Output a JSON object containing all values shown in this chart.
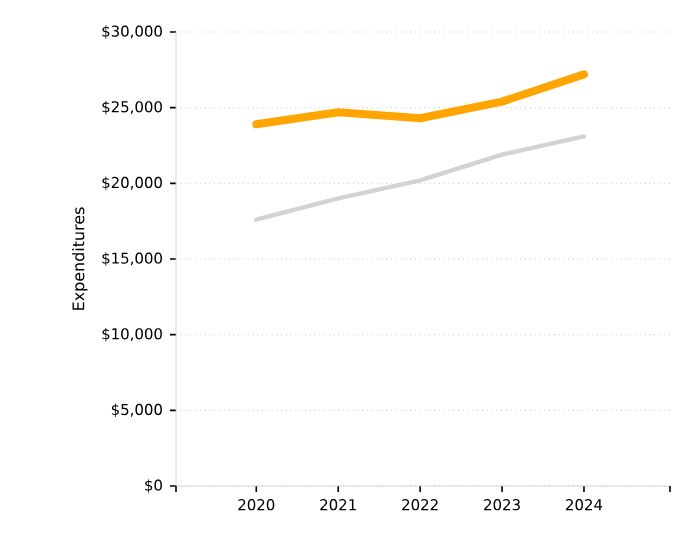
{
  "chart_data": {
    "type": "line",
    "ylabel": "Expenditures",
    "categories": [
      "2020",
      "2021",
      "2022",
      "2023",
      "2024"
    ],
    "series": [
      {
        "color": "#ffa500",
        "values": [
          23900,
          24700,
          24300,
          25400,
          27200
        ]
      },
      {
        "color": "#d3d3d3",
        "values": [
          17600,
          19000,
          20200,
          21900,
          23100
        ]
      }
    ],
    "ylim": [
      0,
      30000
    ],
    "yticks": [
      {
        "value": 0,
        "label": "$0"
      },
      {
        "value": 5000,
        "label": "$5,000"
      },
      {
        "value": 10000,
        "label": "$10,000"
      },
      {
        "value": 15000,
        "label": "$15,000"
      },
      {
        "value": 20000,
        "label": "$20,000"
      },
      {
        "value": 25000,
        "label": "$25,000"
      },
      {
        "value": 30000,
        "label": "$30,000"
      }
    ],
    "grid": "y",
    "marker": "none"
  }
}
